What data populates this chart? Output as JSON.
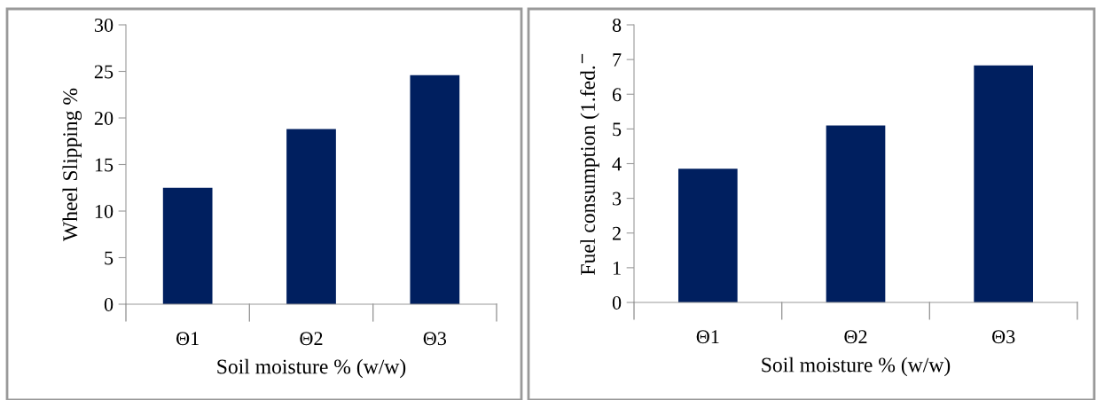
{
  "chart_data": [
    {
      "type": "bar",
      "xlabel": "Soil moisture % (w/w)",
      "ylabel": "Wheel Slipping %",
      "categories": [
        "Θ1",
        "Θ2",
        "Θ3"
      ],
      "values": [
        12.5,
        18.8,
        24.6
      ],
      "color": "#001f5f",
      "ylim": [
        0,
        30
      ],
      "yticks": [
        0,
        5,
        10,
        15,
        20,
        25,
        30
      ],
      "grid": false
    },
    {
      "type": "bar",
      "xlabel": "Soil moisture % (w/w)",
      "ylabel": "Fuel consumption (1.fed.$^{−}$",
      "categories": [
        "Θ1",
        "Θ2",
        "Θ3"
      ],
      "values": [
        3.85,
        5.1,
        6.83
      ],
      "color": "#001f5f",
      "ylim": [
        0,
        8
      ],
      "yticks": [
        0,
        1,
        2,
        3,
        4,
        5,
        6,
        7,
        8
      ],
      "grid": false
    }
  ]
}
